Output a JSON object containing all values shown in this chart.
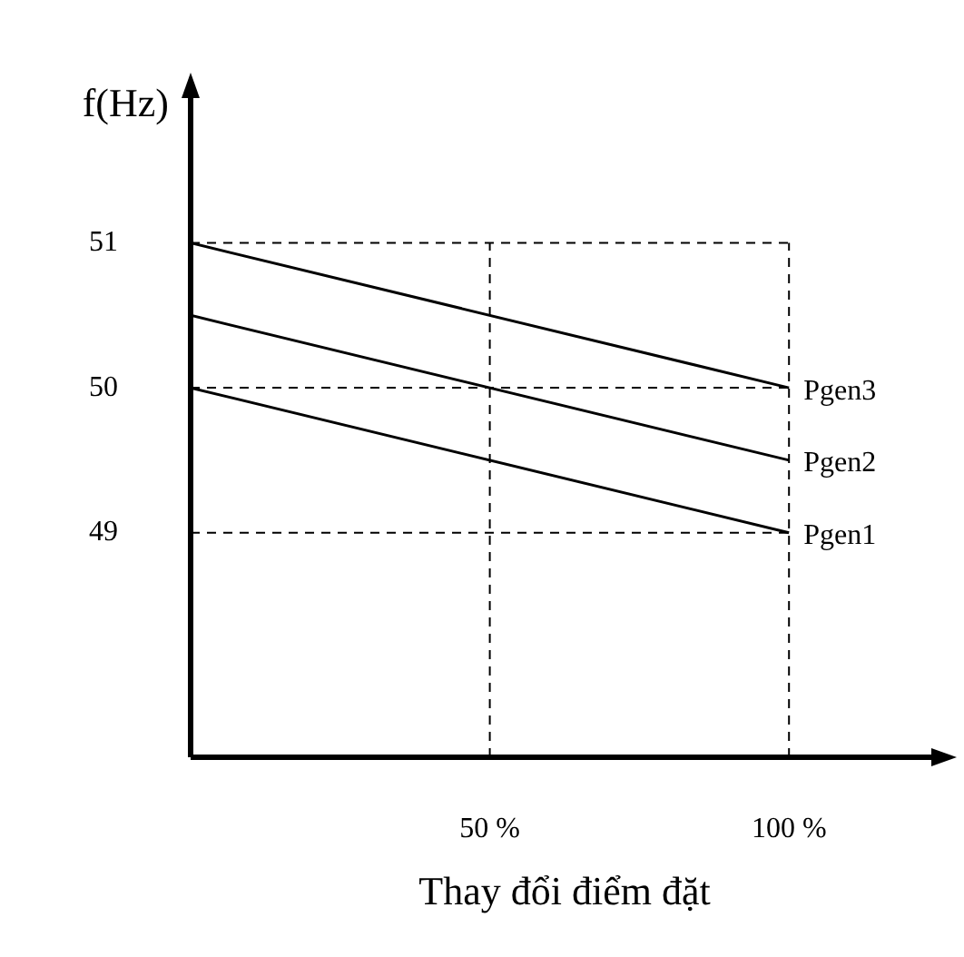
{
  "chart_data": {
    "type": "line",
    "xlabel": "Thay đổi điểm đặt",
    "ylabel": "f(Hz)",
    "x": [
      0,
      100
    ],
    "series": [
      {
        "name": "Pgen3",
        "color": "#000000",
        "values": [
          51,
          50
        ]
      },
      {
        "name": "Pgen2",
        "color": "#000000",
        "values": [
          50.5,
          49.5
        ]
      },
      {
        "name": "Pgen1",
        "color": "#000000",
        "values": [
          50,
          49
        ]
      }
    ],
    "xlim": [
      0,
      125
    ],
    "xticks": [
      {
        "value": 50,
        "label": "50 %"
      },
      {
        "value": 100,
        "label": "100 %"
      }
    ],
    "ylim": [
      47.45,
      52.05
    ],
    "yticks": [
      49,
      50,
      51
    ],
    "ref_lines": [
      {
        "axis": "y",
        "value": 49,
        "line_style": "dashed",
        "color": "#000000"
      },
      {
        "axis": "y",
        "value": 50,
        "line_style": "dashed",
        "color": "#000000"
      },
      {
        "axis": "y",
        "value": 51,
        "line_style": "dashed",
        "color": "#000000"
      },
      {
        "axis": "x",
        "value": 50,
        "line_style": "dashed",
        "color": "#000000"
      },
      {
        "axis": "x",
        "value": 100,
        "line_style": "dashed",
        "color": "#000000"
      }
    ],
    "grid": false,
    "legend": false,
    "marker": "none",
    "line_style": "solid"
  }
}
